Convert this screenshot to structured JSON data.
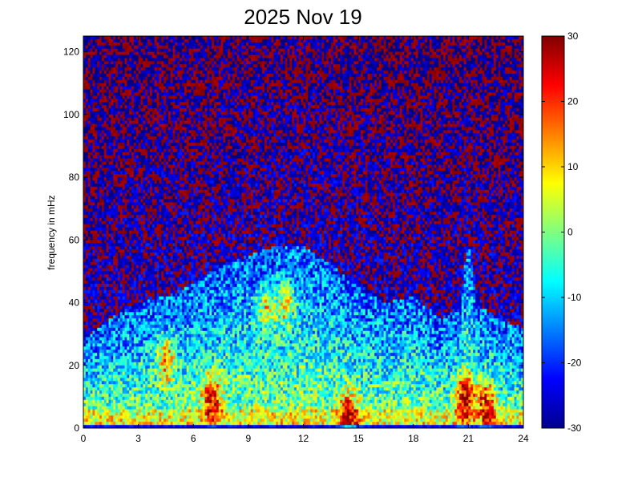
{
  "chart_data": {
    "type": "heatmap",
    "title": "2025 Nov 19",
    "xlabel": "",
    "ylabel": "frequency in mHz",
    "xlim": [
      0,
      24
    ],
    "ylim": [
      0,
      125
    ],
    "x_ticks": [
      "0",
      "3",
      "6",
      "9",
      "12",
      "15",
      "18",
      "21",
      "24"
    ],
    "y_ticks": [
      "0",
      "20",
      "40",
      "60",
      "80",
      "100",
      "120"
    ],
    "colorbar": {
      "range": [
        -30,
        30
      ],
      "ticks": [
        "-30",
        "-20",
        "-10",
        "0",
        "10",
        "20",
        "30"
      ],
      "colormap": "jet"
    },
    "grid": false,
    "time_bins": 192,
    "freq_bins": 125,
    "description_profile": {
      "activity_envelope": [
        {
          "hour": 0,
          "height": 28
        },
        {
          "hour": 1.5,
          "height": 35
        },
        {
          "hour": 3,
          "height": 40
        },
        {
          "hour": 4.5,
          "height": 42
        },
        {
          "hour": 6,
          "height": 46
        },
        {
          "hour": 7,
          "height": 50
        },
        {
          "hour": 9,
          "height": 55
        },
        {
          "hour": 10.5,
          "height": 58
        },
        {
          "hour": 12,
          "height": 58
        },
        {
          "hour": 13.5,
          "height": 52
        },
        {
          "hour": 15,
          "height": 45
        },
        {
          "hour": 16.5,
          "height": 40
        },
        {
          "hour": 18,
          "height": 42
        },
        {
          "hour": 19.5,
          "height": 35
        },
        {
          "hour": 20.5,
          "height": 38
        },
        {
          "hour": 21,
          "height": 60
        },
        {
          "hour": 21.5,
          "height": 40
        },
        {
          "hour": 22.5,
          "height": 35
        },
        {
          "hour": 24,
          "height": 32
        }
      ],
      "hotspots": [
        {
          "hour": 4.5,
          "freq": 22,
          "level": 12
        },
        {
          "hour": 7,
          "freq": 10,
          "level": 18
        },
        {
          "hour": 10,
          "freq": 38,
          "level": 8
        },
        {
          "hour": 11,
          "freq": 40,
          "level": 10
        },
        {
          "hour": 14.5,
          "freq": 5,
          "level": 14
        },
        {
          "hour": 20.8,
          "freq": 10,
          "level": 22
        },
        {
          "hour": 22,
          "freq": 8,
          "level": 16
        }
      ]
    }
  }
}
